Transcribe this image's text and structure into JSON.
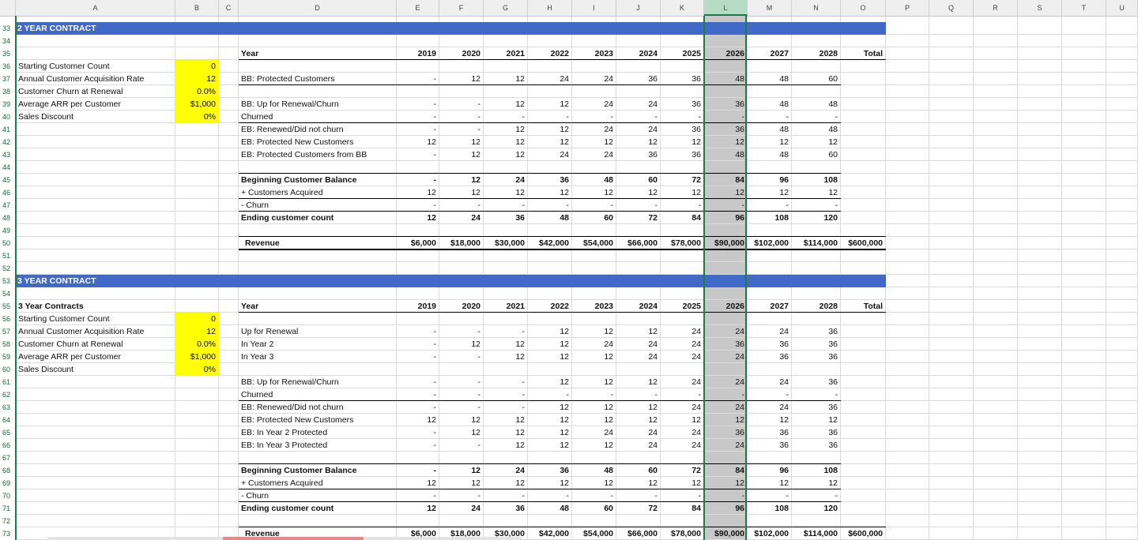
{
  "columns": [
    "A",
    "B",
    "C",
    "D",
    "E",
    "F",
    "G",
    "H",
    "I",
    "J",
    "K",
    "L",
    "M",
    "N",
    "O",
    "P",
    "Q",
    "R",
    "S",
    "T",
    "U"
  ],
  "selected_column": "L",
  "row_numbers": [
    "33",
    "34",
    "35",
    "36",
    "37",
    "38",
    "39",
    "40",
    "41",
    "42",
    "43",
    "44",
    "45",
    "46",
    "47",
    "48",
    "49",
    "50",
    "51",
    "52",
    "53",
    "54",
    "55",
    "56",
    "57",
    "58",
    "59",
    "60",
    "61",
    "62",
    "63",
    "64",
    "65",
    "66",
    "67",
    "68",
    "69",
    "70",
    "71",
    "72",
    "73"
  ],
  "sections": {
    "two_year": {
      "title": "2 YEAR CONTRACT"
    },
    "three_year": {
      "title": "3 YEAR CONTRACT"
    }
  },
  "colors": {
    "band": "#4169c8",
    "input_fill": "#ffff00",
    "selected_column": "#c8c8c8",
    "accent": "#1e7a46"
  },
  "rows": {
    "r35": {
      "D": "Year",
      "E": "2019",
      "F": "2020",
      "G": "2021",
      "H": "2022",
      "I": "2023",
      "J": "2024",
      "K": "2025",
      "L": "2026",
      "M": "2027",
      "N": "2028",
      "O": "Total"
    },
    "r36": {
      "A": "Starting Customer Count",
      "B": "0"
    },
    "r37": {
      "A": "Annual Customer Acquisition Rate",
      "B": "12",
      "D": "BB: Protected Customers",
      "E": "-",
      "F": "12",
      "G": "12",
      "H": "24",
      "I": "24",
      "J": "36",
      "K": "36",
      "L": "48",
      "M": "48",
      "N": "60"
    },
    "r38": {
      "A": "Customer Churn at Renewal",
      "B": "0.0%"
    },
    "r39": {
      "A": "Average ARR per Customer",
      "B": "$1,000",
      "D": "BB: Up for Renewal/Churn",
      "E": "-",
      "F": "-",
      "G": "12",
      "H": "12",
      "I": "24",
      "J": "24",
      "K": "36",
      "L": "36",
      "M": "48",
      "N": "48"
    },
    "r40": {
      "A": "Sales Discount",
      "B": "0%",
      "D": "Churned",
      "E": "-",
      "F": "-",
      "G": "-",
      "H": "-",
      "I": "-",
      "J": "-",
      "K": "-",
      "L": "-",
      "M": "-",
      "N": "-"
    },
    "r41": {
      "D": "EB: Renewed/Did not churn",
      "E": "-",
      "F": "-",
      "G": "12",
      "H": "12",
      "I": "24",
      "J": "24",
      "K": "36",
      "L": "36",
      "M": "48",
      "N": "48"
    },
    "r42": {
      "D": "EB: Protected New Customers",
      "E": "12",
      "F": "12",
      "G": "12",
      "H": "12",
      "I": "12",
      "J": "12",
      "K": "12",
      "L": "12",
      "M": "12",
      "N": "12"
    },
    "r43": {
      "D": "EB: Protected Customers from BB",
      "E": "-",
      "F": "12",
      "G": "12",
      "H": "24",
      "I": "24",
      "J": "36",
      "K": "36",
      "L": "48",
      "M": "48",
      "N": "60"
    },
    "r45": {
      "D": "Beginning Customer Balance",
      "E": "-",
      "F": "12",
      "G": "24",
      "H": "36",
      "I": "48",
      "J": "60",
      "K": "72",
      "L": "84",
      "M": "96",
      "N": "108"
    },
    "r46": {
      "D": "+ Customers Acquired",
      "E": "12",
      "F": "12",
      "G": "12",
      "H": "12",
      "I": "12",
      "J": "12",
      "K": "12",
      "L": "12",
      "M": "12",
      "N": "12"
    },
    "r47": {
      "D": "- Churn",
      "E": "-",
      "F": "-",
      "G": "-",
      "H": "-",
      "I": "-",
      "J": "-",
      "K": "-",
      "L": "-",
      "M": "-",
      "N": "-"
    },
    "r48": {
      "D": "Ending customer count",
      "E": "12",
      "F": "24",
      "G": "36",
      "H": "48",
      "I": "60",
      "J": "72",
      "K": "84",
      "L": "96",
      "M": "108",
      "N": "120"
    },
    "r50": {
      "D": "Revenue",
      "E": "$6,000",
      "F": "$18,000",
      "G": "$30,000",
      "H": "$42,000",
      "I": "$54,000",
      "J": "$66,000",
      "K": "$78,000",
      "L": "$90,000",
      "M": "$102,000",
      "N": "$114,000",
      "O": "$600,000"
    },
    "r55": {
      "A": "3 Year Contracts",
      "D": "Year",
      "E": "2019",
      "F": "2020",
      "G": "2021",
      "H": "2022",
      "I": "2023",
      "J": "2024",
      "K": "2025",
      "L": "2026",
      "M": "2027",
      "N": "2028",
      "O": "Total"
    },
    "r56": {
      "A": "Starting Customer Count",
      "B": "0"
    },
    "r57": {
      "A": "Annual Customer Acquisition Rate",
      "B": "12",
      "D": "Up for Renewal",
      "E": "-",
      "F": "-",
      "G": "-",
      "H": "12",
      "I": "12",
      "J": "12",
      "K": "24",
      "L": "24",
      "M": "24",
      "N": "36"
    },
    "r58": {
      "A": "Customer Churn at Renewal",
      "B": "0.0%",
      "D": "In Year 2",
      "E": "-",
      "F": "12",
      "G": "12",
      "H": "12",
      "I": "24",
      "J": "24",
      "K": "24",
      "L": "36",
      "M": "36",
      "N": "36"
    },
    "r59": {
      "A": "Average ARR per Customer",
      "B": "$1,000",
      "D": "In Year 3",
      "E": "-",
      "F": "-",
      "G": "12",
      "H": "12",
      "I": "12",
      "J": "24",
      "K": "24",
      "L": "24",
      "M": "36",
      "N": "36"
    },
    "r60": {
      "A": "Sales Discount",
      "B": "0%"
    },
    "r61": {
      "D": "BB: Up for Renewal/Churn",
      "E": "-",
      "F": "-",
      "G": "-",
      "H": "12",
      "I": "12",
      "J": "12",
      "K": "24",
      "L": "24",
      "M": "24",
      "N": "36"
    },
    "r62": {
      "D": "Churned",
      "E": "-",
      "F": "-",
      "G": "-",
      "H": "-",
      "I": "-",
      "J": "-",
      "K": "-",
      "L": "-",
      "M": "-",
      "N": "-"
    },
    "r63": {
      "D": "EB: Renewed/Did not churn",
      "E": "-",
      "F": "-",
      "G": "-",
      "H": "12",
      "I": "12",
      "J": "12",
      "K": "24",
      "L": "24",
      "M": "24",
      "N": "36"
    },
    "r64": {
      "D": "EB: Protected New Customers",
      "E": "12",
      "F": "12",
      "G": "12",
      "H": "12",
      "I": "12",
      "J": "12",
      "K": "12",
      "L": "12",
      "M": "12",
      "N": "12"
    },
    "r65": {
      "D": "EB: In Year 2 Protected",
      "E": "-",
      "F": "12",
      "G": "12",
      "H": "12",
      "I": "24",
      "J": "24",
      "K": "24",
      "L": "36",
      "M": "36",
      "N": "36"
    },
    "r66": {
      "D": "EB: In Year 3 Protected",
      "E": "-",
      "F": "-",
      "G": "12",
      "H": "12",
      "I": "12",
      "J": "24",
      "K": "24",
      "L": "24",
      "M": "36",
      "N": "36"
    },
    "r68": {
      "D": "Beginning Customer Balance",
      "E": "-",
      "F": "12",
      "G": "24",
      "H": "36",
      "I": "48",
      "J": "60",
      "K": "72",
      "L": "84",
      "M": "96",
      "N": "108"
    },
    "r69": {
      "D": "+ Customers Acquired",
      "E": "12",
      "F": "12",
      "G": "12",
      "H": "12",
      "I": "12",
      "J": "12",
      "K": "12",
      "L": "12",
      "M": "12",
      "N": "12"
    },
    "r70": {
      "D": "- Churn",
      "E": "-",
      "F": "-",
      "G": "-",
      "H": "-",
      "I": "-",
      "J": "-",
      "K": "-",
      "L": "-",
      "M": "-",
      "N": "-"
    },
    "r71": {
      "D": "Ending customer count",
      "E": "12",
      "F": "24",
      "G": "36",
      "H": "48",
      "I": "60",
      "J": "72",
      "K": "84",
      "L": "96",
      "M": "108",
      "N": "120"
    },
    "r73": {
      "D": "Revenue",
      "E": "$6,000",
      "F": "$18,000",
      "G": "$30,000",
      "H": "$42,000",
      "I": "$54,000",
      "J": "$66,000",
      "K": "$78,000",
      "L": "$90,000",
      "M": "$102,000",
      "N": "$114,000",
      "O": "$600,000"
    }
  }
}
